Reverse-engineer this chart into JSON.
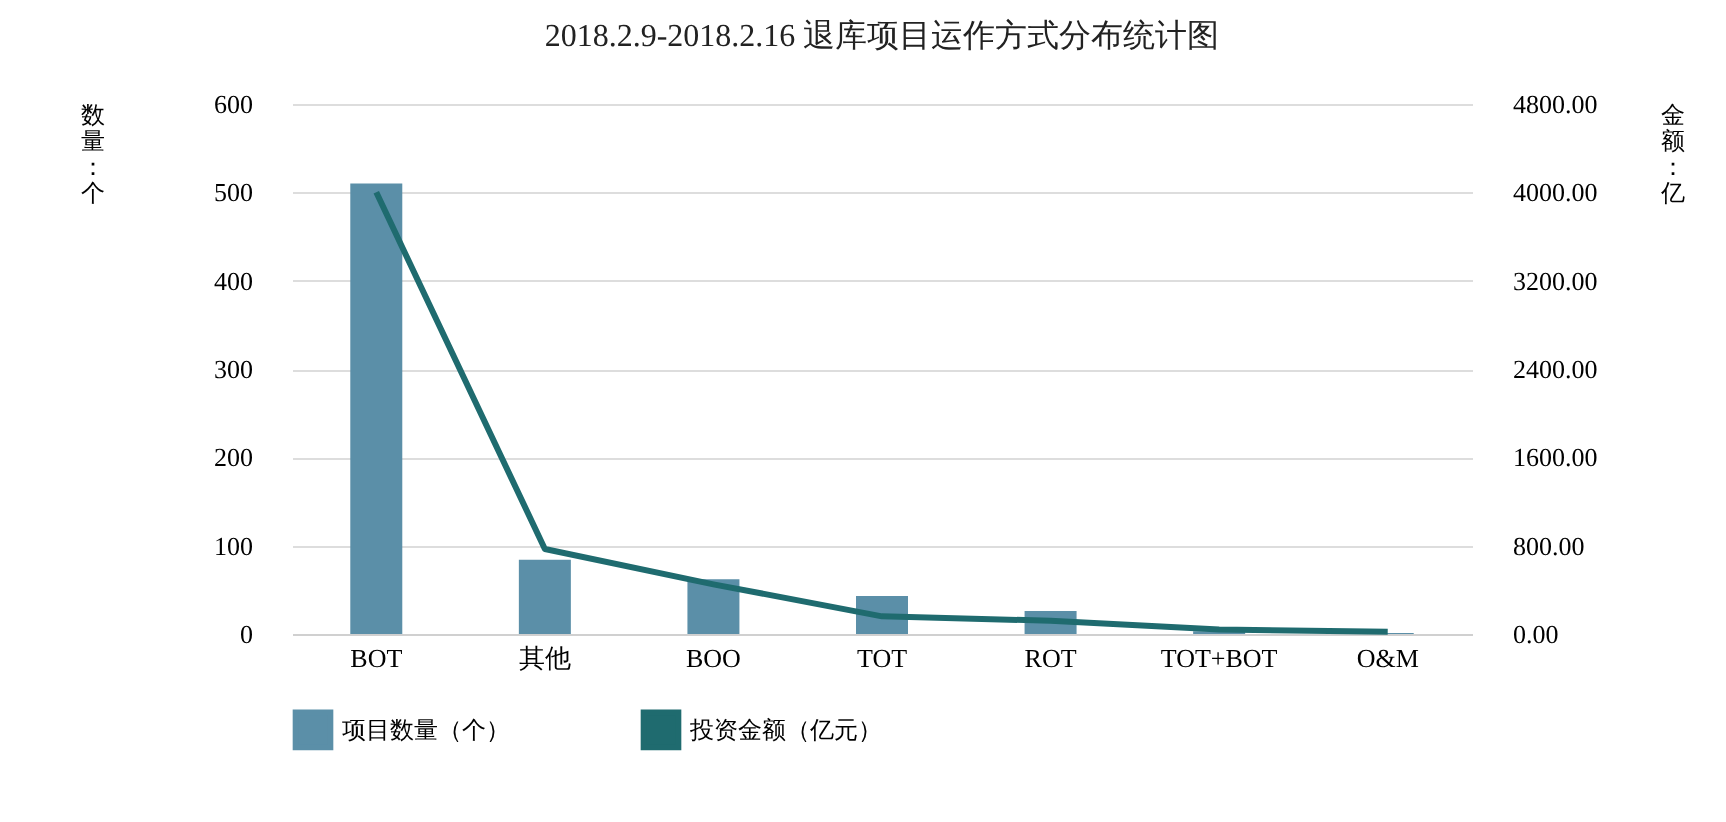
{
  "chart_data": {
    "type": "bar",
    "title": "2018.2.9-2018.2.16 退库项目运作方式分布统计图",
    "ylabel": "数量：个",
    "y2label": "金额：亿",
    "categories": [
      "BOT",
      "其他",
      "BOO",
      "TOT",
      "ROT",
      "TOT+BOT",
      "O&M"
    ],
    "series": [
      {
        "name": "项目数量（个）",
        "type": "bar",
        "color": "#5b8fa8",
        "values": [
          510,
          84,
          62,
          43,
          26,
          3,
          1
        ]
      },
      {
        "name": "投资金额（亿元）",
        "type": "line",
        "axis": "y2",
        "color": "#1f6b6f",
        "values": [
          4000,
          770,
          450,
          160,
          120,
          40,
          20
        ]
      }
    ],
    "ylim": [
      0,
      600
    ],
    "yticks": [
      0,
      100,
      200,
      300,
      400,
      500,
      600
    ],
    "y2lim": [
      0,
      4800
    ],
    "y2ticks": [
      {
        "value": 0,
        "label": "0.00"
      },
      {
        "value": 800,
        "label": "800.00"
      },
      {
        "value": 1600,
        "label": "1600.00"
      },
      {
        "value": 2400,
        "label": "2400.00"
      },
      {
        "value": 3200,
        "label": "3200.00"
      },
      {
        "value": 4000,
        "label": "4000.00"
      },
      {
        "value": 4800,
        "label": "4800.00"
      }
    ],
    "grid": "y",
    "legend": "bottom"
  }
}
